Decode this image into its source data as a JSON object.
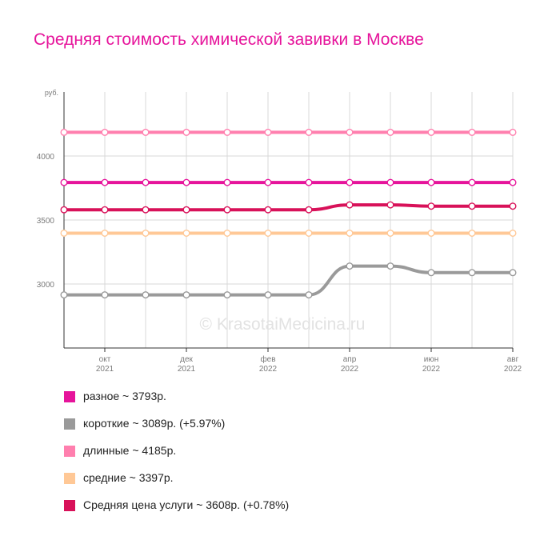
{
  "title": "Средняя стоимость химической завивки в Москве",
  "watermark": "© KrasotaiMedicina.ru",
  "chart_data": {
    "type": "line",
    "y_unit_label": "руб.",
    "ylim": [
      2500,
      4500
    ],
    "y_ticks": [
      3000,
      3500,
      4000
    ],
    "x_count": 12,
    "x_tick_labels": [
      {
        "index": 1,
        "month": "окт",
        "year": "2021"
      },
      {
        "index": 3,
        "month": "дек",
        "year": "2021"
      },
      {
        "index": 5,
        "month": "фев",
        "year": "2022"
      },
      {
        "index": 7,
        "month": "апр",
        "year": "2022"
      },
      {
        "index": 9,
        "month": "июн",
        "year": "2022"
      },
      {
        "index": 11,
        "month": "авг",
        "year": "2022"
      }
    ],
    "grid": true,
    "series": [
      {
        "name": "длинные",
        "color": "#ff7fae",
        "values": [
          4185,
          4185,
          4185,
          4185,
          4185,
          4185,
          4185,
          4185,
          4185,
          4185,
          4185,
          4185
        ]
      },
      {
        "name": "разное",
        "color": "#e6149b",
        "values": [
          3793,
          3793,
          3793,
          3793,
          3793,
          3793,
          3793,
          3793,
          3793,
          3793,
          3793,
          3793
        ]
      },
      {
        "name": "Средняя цена услуги",
        "color": "#d81159",
        "values": [
          3580,
          3580,
          3580,
          3580,
          3580,
          3580,
          3580,
          3618,
          3618,
          3608,
          3608,
          3608
        ]
      },
      {
        "name": "средние",
        "color": "#ffc896",
        "values": [
          3397,
          3397,
          3397,
          3397,
          3397,
          3397,
          3397,
          3397,
          3397,
          3397,
          3397,
          3397
        ]
      },
      {
        "name": "короткие",
        "color": "#9a9a9a",
        "values": [
          2915,
          2915,
          2915,
          2915,
          2915,
          2915,
          2915,
          3140,
          3140,
          3089,
          3089,
          3089
        ]
      }
    ]
  },
  "legend": [
    {
      "label": "разное ~ 3793р.",
      "color": "#e6149b"
    },
    {
      "label": "короткие ~ 3089р. (+5.97%)",
      "color": "#9a9a9a"
    },
    {
      "label": "длинные ~ 4185р.",
      "color": "#ff7fae"
    },
    {
      "label": "средние ~ 3397р.",
      "color": "#ffc896"
    },
    {
      "label": "Средняя цена услуги ~ 3608р. (+0.78%)",
      "color": "#d81159"
    }
  ]
}
